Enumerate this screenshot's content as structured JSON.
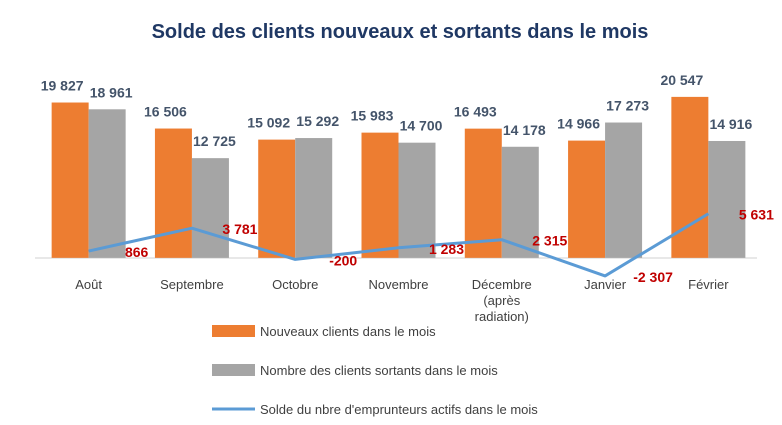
{
  "chart_data": {
    "type": "bar",
    "title": "Solde des clients nouveaux et sortants dans le mois",
    "categories": [
      "Août",
      "Septembre",
      "Octobre",
      "Novembre",
      "Décembre (après radiation)",
      "Janvier",
      "Février"
    ],
    "ylim": [
      -5000,
      25000
    ],
    "series": [
      {
        "name": "Nouveaux clients dans le mois",
        "color": "#ed7d31",
        "type": "bar",
        "values": [
          19827,
          16506,
          15092,
          15983,
          16493,
          14966,
          20547
        ],
        "value_labels": [
          "19 827",
          "16 506",
          "15 092",
          "15 983",
          "16 493",
          "14 966",
          "20 547"
        ]
      },
      {
        "name": "Nombre des clients sortants dans le mois",
        "color": "#a5a5a5",
        "type": "bar",
        "values": [
          18961,
          12725,
          15292,
          14700,
          14178,
          17273,
          14916
        ],
        "value_labels": [
          "18 961",
          "12 725",
          "15 292",
          "14 700",
          "14 178",
          "17 273",
          "14 916"
        ]
      },
      {
        "name": "Solde du nbre d'emprunteurs actifs dans le mois",
        "color": "#5b9bd5",
        "type": "line",
        "values": [
          866,
          3781,
          -200,
          1283,
          2315,
          -2307,
          5631
        ],
        "value_labels": [
          "866",
          "3 781",
          "-200",
          "1 283",
          "2 315",
          "-2 307",
          "5 631"
        ]
      }
    ]
  }
}
